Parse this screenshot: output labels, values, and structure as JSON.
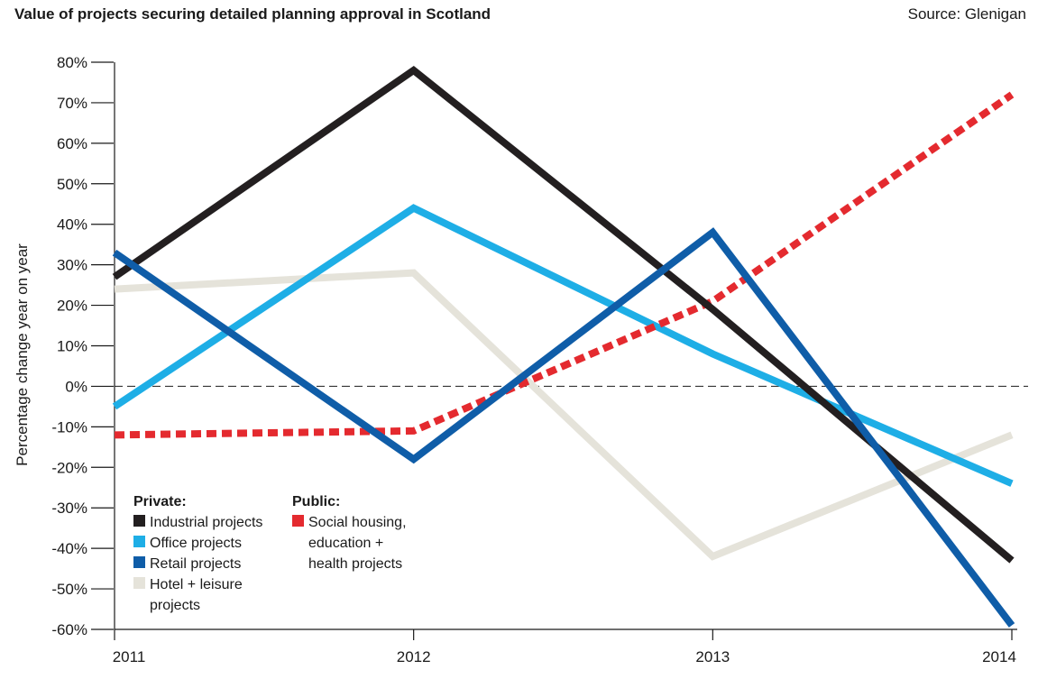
{
  "header": {
    "title": "Value of projects securing detailed planning approval in Scotland",
    "source": "Source: Glenigan"
  },
  "legend": {
    "private_heading": "Private:",
    "public_heading": "Public:"
  },
  "chart_data": {
    "type": "line",
    "title": "Value of projects securing detailed planning approval in Scotland",
    "xlabel": "",
    "ylabel": "Percentage change year on year",
    "x": [
      "2011",
      "2012",
      "2013",
      "2014"
    ],
    "yticks": [
      "80%",
      "70%",
      "60%",
      "50%",
      "40%",
      "30%",
      "20%",
      "10%",
      "0%",
      "-10%",
      "-20%",
      "-30%",
      "-40%",
      "-50%",
      "-60%"
    ],
    "ylim": [
      -60,
      80
    ],
    "zero_line": "dashed",
    "grid": false,
    "legend_position": "bottom-left",
    "series": [
      {
        "name": "Industrial projects",
        "group": "Private",
        "color": "#231f20",
        "dash": false,
        "label_lines": [
          "Industrial projects"
        ],
        "values": [
          27,
          78,
          19,
          -43
        ]
      },
      {
        "name": "Office projects",
        "group": "Private",
        "color": "#1eaee6",
        "dash": false,
        "label_lines": [
          "Office projects"
        ],
        "values": [
          -5,
          44,
          8,
          -24
        ]
      },
      {
        "name": "Retail projects",
        "group": "Private",
        "color": "#0f5da8",
        "dash": false,
        "label_lines": [
          "Retail projects"
        ],
        "values": [
          33,
          -18,
          38,
          -59
        ]
      },
      {
        "name": "Hotel + leisure projects",
        "group": "Private",
        "color": "#e5e3da",
        "dash": false,
        "label_lines": [
          "Hotel + leisure",
          "projects"
        ],
        "values": [
          24,
          28,
          -42,
          -12
        ]
      },
      {
        "name": "Social housing, education + health projects",
        "group": "Public",
        "color": "#e42a2f",
        "dash": true,
        "label_lines": [
          "Social housing,",
          "education +",
          "health projects"
        ],
        "values": [
          -12,
          -11,
          21,
          72
        ]
      }
    ]
  }
}
